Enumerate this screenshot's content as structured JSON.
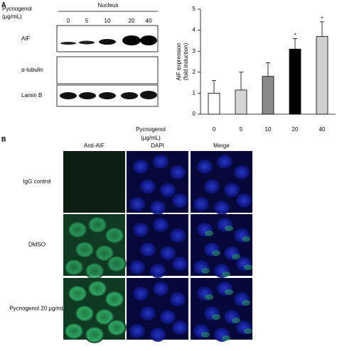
{
  "panel_a": {
    "label": "A",
    "blot": {
      "treatment_label": [
        "Pycnogenol",
        "(μg/mL)"
      ],
      "fraction": "Nucleus",
      "doses": [
        "0",
        "5",
        "10",
        "20",
        "40"
      ],
      "rows": [
        "AIF",
        "α-tubulin",
        "Lamin B"
      ]
    }
  },
  "chart_data": {
    "type": "bar",
    "ylabel": [
      "AIF expression",
      "(fold induction)"
    ],
    "xlabel": [
      "Pycnogenol",
      "(μg/mL)"
    ],
    "categories": [
      "0",
      "5",
      "10",
      "20",
      "40"
    ],
    "values": [
      1.0,
      1.15,
      1.8,
      3.1,
      3.7
    ],
    "errors": [
      0.6,
      0.85,
      0.65,
      0.5,
      0.7
    ],
    "significance": [
      null,
      null,
      null,
      "*",
      "*"
    ],
    "colors": [
      "#ffffff",
      "#d6d6d6",
      "#8a8a8a",
      "#000000",
      "#d0d0d0"
    ],
    "ylim": [
      0,
      5
    ],
    "yticks": [
      0,
      1,
      2,
      3,
      4,
      5
    ]
  },
  "panel_b": {
    "label": "B",
    "columns": [
      "Anti-AIF",
      "DAPI",
      "Merge"
    ],
    "rows": [
      "IgG control",
      "DMSO",
      "Pycnogenol 20 μg/mL"
    ]
  }
}
